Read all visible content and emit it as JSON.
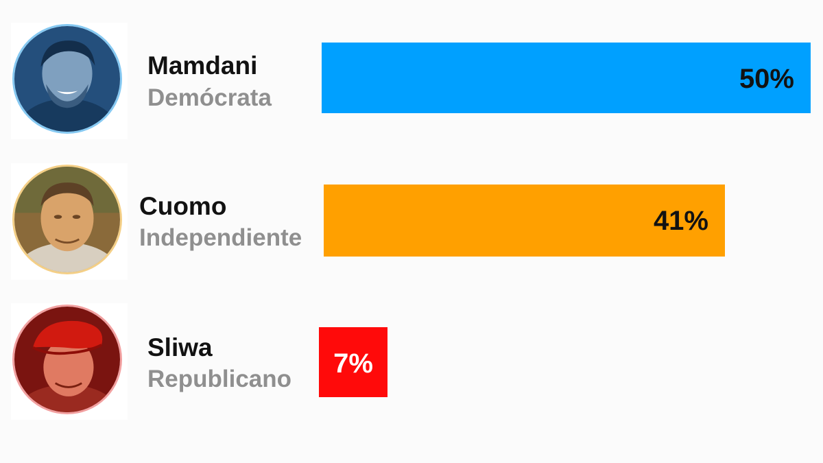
{
  "colors": {
    "background": "#fbfbfb",
    "democrat": "#00a0ff",
    "independent": "#ffa000",
    "republican": "#ff0a0a",
    "name_text": "#121212",
    "party_text": "#8f8f8f"
  },
  "chart_data": {
    "type": "bar",
    "orientation": "horizontal",
    "title": "",
    "xlabel": "",
    "ylabel": "",
    "xlim": [
      0,
      50
    ],
    "grid": false,
    "categories": [
      "Mamdani",
      "Cuomo",
      "Sliwa"
    ],
    "values": [
      50,
      41,
      7
    ],
    "series": [
      {
        "values": [
          50,
          41,
          7
        ],
        "data_labels": [
          "50%",
          "41%",
          "7%"
        ]
      }
    ]
  },
  "candidates": [
    {
      "name": "Mamdani",
      "party": "Demócrata",
      "value": 50,
      "label": "50%",
      "color": "#00a0ff",
      "ring_color": "#86c9f2",
      "photo_tint": "#1f4f80",
      "label_color": "#121212",
      "icon": "candidate-photo-mamdani"
    },
    {
      "name": "Cuomo",
      "party": "Independiente",
      "value": 41,
      "label": "41%",
      "color": "#ffa000",
      "ring_color": "#f4cf86",
      "photo_tint": "#b8742a",
      "label_color": "#121212",
      "icon": "candidate-photo-cuomo"
    },
    {
      "name": "Sliwa",
      "party": "Republicano",
      "value": 7,
      "label": "7%",
      "color": "#ff0a0a",
      "ring_color": "#f2a0a0",
      "photo_tint": "#b22018",
      "label_color": "#ffffff",
      "icon": "candidate-photo-sliwa"
    }
  ]
}
